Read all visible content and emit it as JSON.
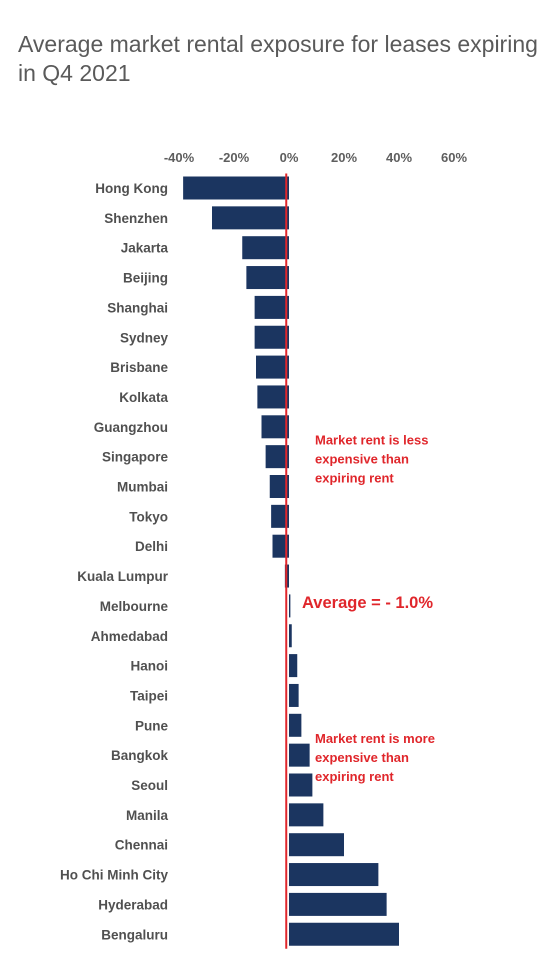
{
  "chart_data": {
    "type": "bar",
    "orientation": "horizontal",
    "title": "Average market rental exposure for leases expiring in Q4 2021",
    "xlim": [
      -40,
      60
    ],
    "x_ticks": [
      "-40%",
      "-20%",
      "0%",
      "20%",
      "40%",
      "60%"
    ],
    "x_tick_values": [
      -40,
      -20,
      0,
      20,
      40,
      60
    ],
    "bar_color": "#1b3560",
    "average_line_color": "#e0262b",
    "categories": [
      "Hong Kong",
      "Shenzhen",
      "Jakarta",
      "Beijing",
      "Shanghai",
      "Sydney",
      "Brisbane",
      "Kolkata",
      "Guangzhou",
      "Singapore",
      "Mumbai",
      "Tokyo",
      "Delhi",
      "Kuala Lumpur",
      "Melbourne",
      "Ahmedabad",
      "Hanoi",
      "Taipei",
      "Pune",
      "Bangkok",
      "Seoul",
      "Manila",
      "Chennai",
      "Ho Chi Minh City",
      "Hyderabad",
      "Bengaluru"
    ],
    "values": [
      -38.5,
      -28,
      -17,
      -15.5,
      -12.5,
      -12.5,
      -12,
      -11.5,
      -10,
      -8.5,
      -7,
      -6.5,
      -6,
      -1.5,
      0.5,
      1,
      3,
      3.5,
      4.5,
      7.5,
      8.5,
      12.5,
      20,
      32.5,
      35.5,
      40
    ],
    "average_value": -1.0,
    "average_label": "Average = - 1.0%",
    "annotations": [
      {
        "lines": [
          "Market rent is less",
          "expensive than",
          "expiring rent"
        ]
      },
      {
        "lines": [
          "Market rent is more",
          "expensive than",
          "expiring rent"
        ]
      }
    ]
  }
}
